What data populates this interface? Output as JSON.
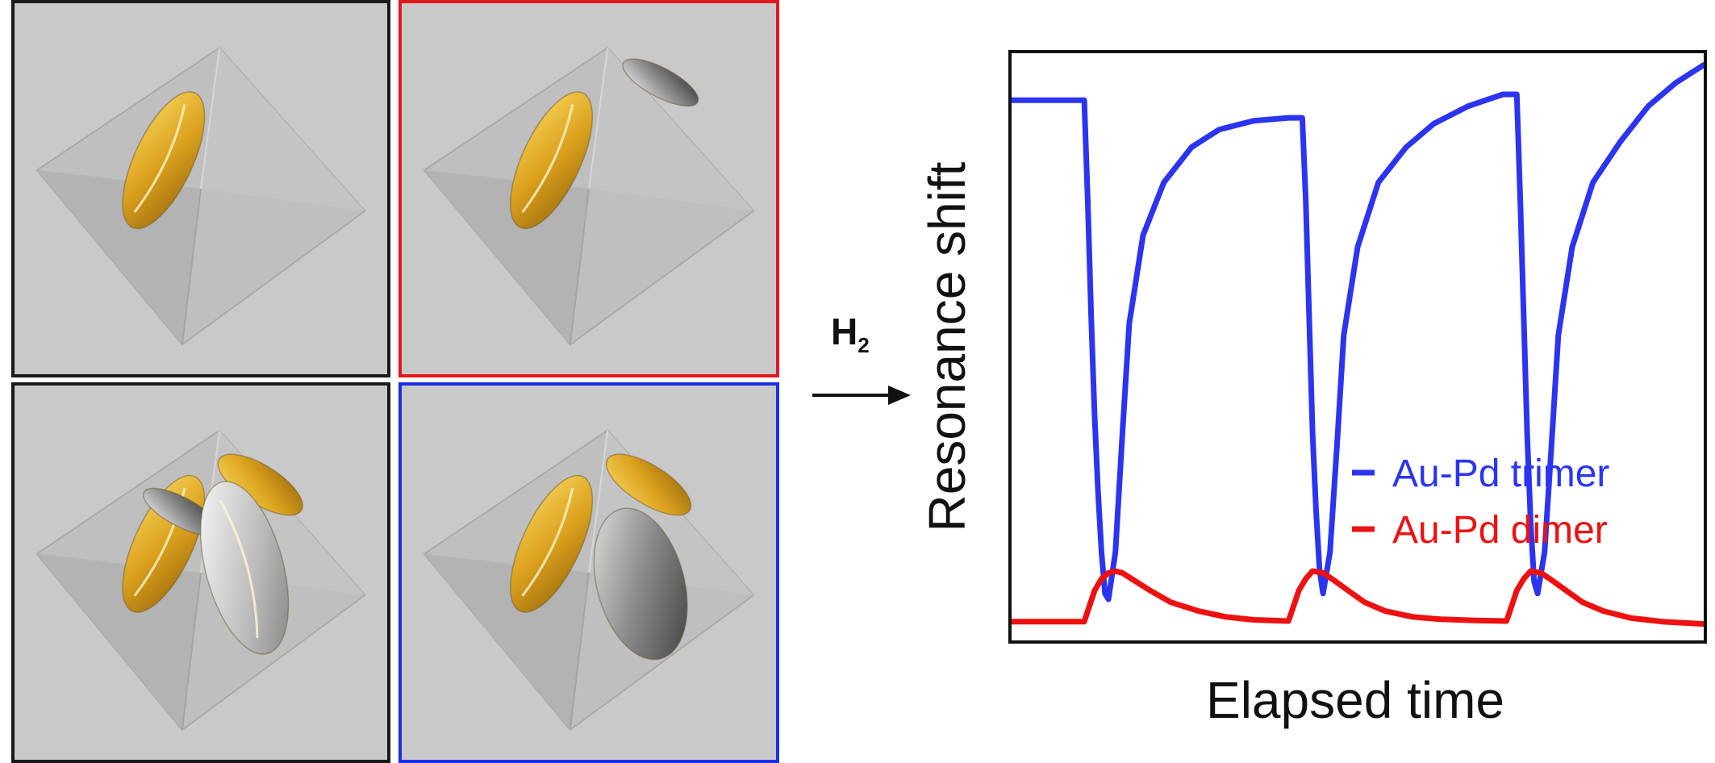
{
  "panels": [
    {
      "id": "tl",
      "border": "#1a1a1a",
      "particles": [
        "gold"
      ]
    },
    {
      "id": "tr",
      "border": "#e4161e",
      "particles": [
        "gold",
        "dark-pd"
      ]
    },
    {
      "id": "bl",
      "border": "#1a1a1a",
      "particles": [
        "gold",
        "dark-pd",
        "gold-small",
        "silver-pd"
      ]
    },
    {
      "id": "br",
      "border": "#1a2ee6",
      "particles": [
        "gold",
        "gold-small",
        "dark-pd-large"
      ]
    }
  ],
  "stimulus": {
    "label": "H",
    "subscript": "2"
  },
  "colors": {
    "trimer": "#2b35f0",
    "dimer": "#ee1111",
    "frame": "#111111"
  },
  "chart_data": {
    "type": "line",
    "xlabel": "Elapsed time",
    "ylabel": "Resonance shift",
    "xlim": [
      0,
      100
    ],
    "ylim": [
      0,
      100
    ],
    "ticks": "none",
    "legend": "lower-right",
    "series": [
      {
        "name": "Au-Pd trimer",
        "color": "#2b35f0",
        "x": [
          0,
          5,
          10.5,
          11,
          11.5,
          12,
          12.5,
          13,
          13.5,
          14,
          15,
          16,
          17,
          19,
          22,
          26,
          30,
          35,
          40,
          42,
          42.5,
          43,
          43.5,
          44,
          44.5,
          45,
          46,
          47,
          48,
          50,
          53,
          57,
          61,
          66,
          71,
          73,
          73.5,
          74,
          74.5,
          75,
          75.5,
          76,
          77,
          78,
          79,
          81,
          84,
          88,
          92,
          96,
          100
        ],
        "values": [
          92,
          92,
          92,
          75,
          55,
          38,
          25,
          15,
          8,
          7,
          15,
          35,
          54,
          69,
          78,
          84,
          87,
          88.5,
          89,
          89,
          75,
          55,
          35,
          22,
          12,
          8,
          15,
          33,
          52,
          67,
          78,
          84,
          88,
          91,
          93,
          93,
          75,
          55,
          35,
          20,
          10,
          8,
          15,
          33,
          52,
          67,
          78,
          85,
          91,
          95,
          98
        ]
      },
      {
        "name": "Au-Pd dimer",
        "color": "#ee1111",
        "x": [
          0,
          5,
          10.5,
          11,
          12,
          13,
          14,
          15,
          16,
          18,
          20,
          23,
          27,
          31,
          35,
          40,
          40.5,
          41.5,
          42.5,
          43.5,
          45,
          46.5,
          48.5,
          51,
          54,
          58,
          62,
          67,
          71.5,
          72,
          73,
          74,
          75,
          76.5,
          78,
          80,
          82.5,
          85.5,
          89.5,
          94,
          100
        ],
        "values": [
          3.2,
          3.2,
          3.2,
          5,
          8.5,
          10.5,
          11.5,
          11.8,
          11.5,
          10,
          8.5,
          6.5,
          5,
          4,
          3.5,
          3.3,
          5,
          8.5,
          10.5,
          11.8,
          11.5,
          10.3,
          8.6,
          6.5,
          5,
          4,
          3.6,
          3.4,
          3.3,
          5,
          8.5,
          10.5,
          11.8,
          11.5,
          10.3,
          8.6,
          6.5,
          5,
          3.8,
          3.2,
          2.8
        ]
      }
    ]
  }
}
